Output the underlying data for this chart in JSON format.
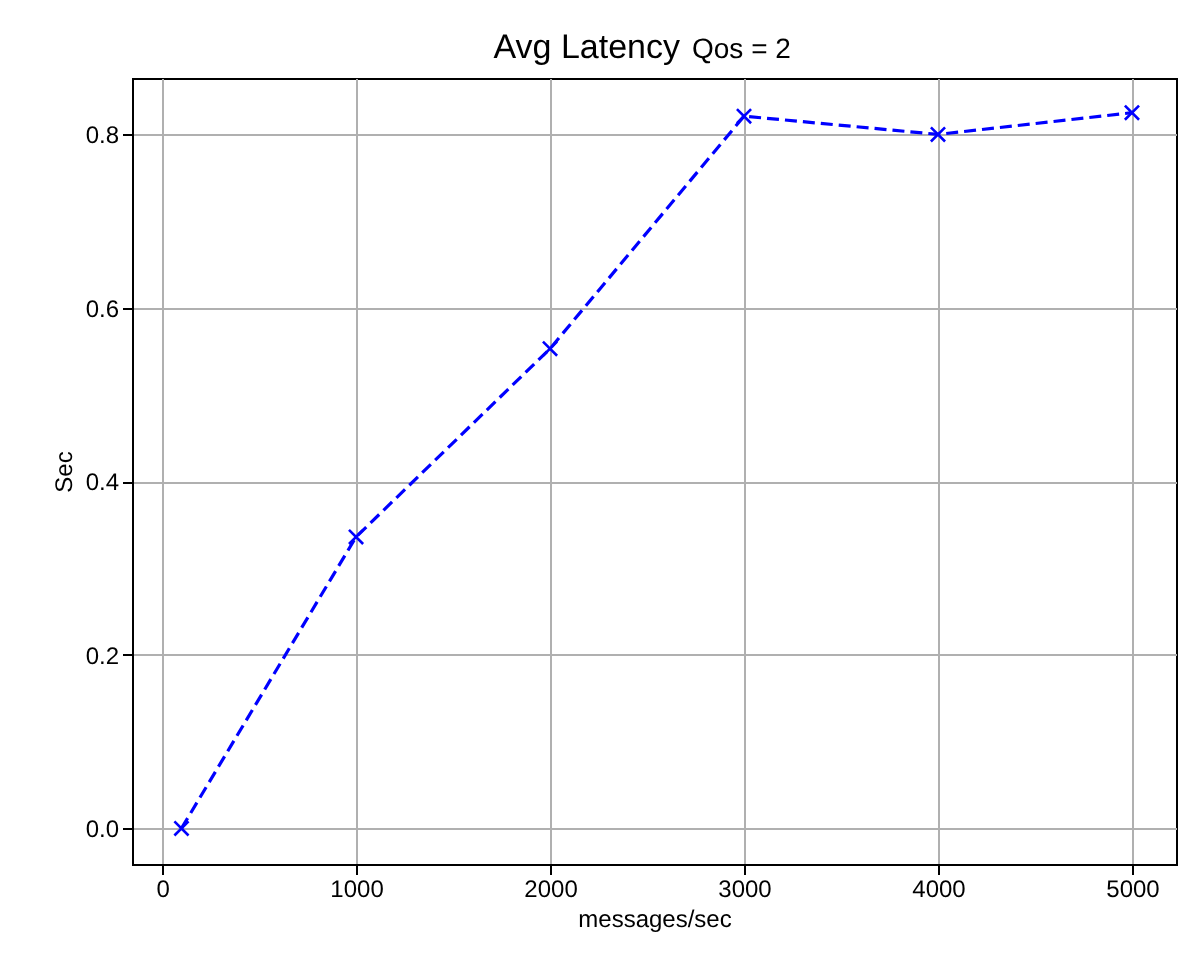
{
  "chart_data": {
    "type": "line",
    "title": "Avg Latency",
    "subtitle": "Qos = 2",
    "xlabel": "messages/sec",
    "ylabel": "Sec",
    "x": [
      100,
      1000,
      2000,
      3000,
      4000,
      5000
    ],
    "series": [
      {
        "color": "#0000ff",
        "values": [
          0.0,
          0.336,
          0.553,
          0.821,
          0.8,
          0.825
        ]
      }
    ],
    "xlim": [
      -155,
      5227
    ],
    "xticks": [
      0,
      1000,
      2000,
      3000,
      4000,
      5000
    ],
    "ylim": [
      -0.041,
      0.865
    ],
    "yticks": [
      {
        "value": 0,
        "label": "0.0"
      },
      {
        "value": 0.2,
        "label": "0.2"
      },
      {
        "value": 0.4,
        "label": "0.4"
      },
      {
        "value": 0.6,
        "label": "0.6"
      },
      {
        "value": 0.8,
        "label": "0.8"
      }
    ],
    "grid": true,
    "marker": "cross",
    "line_style": "dashed"
  }
}
